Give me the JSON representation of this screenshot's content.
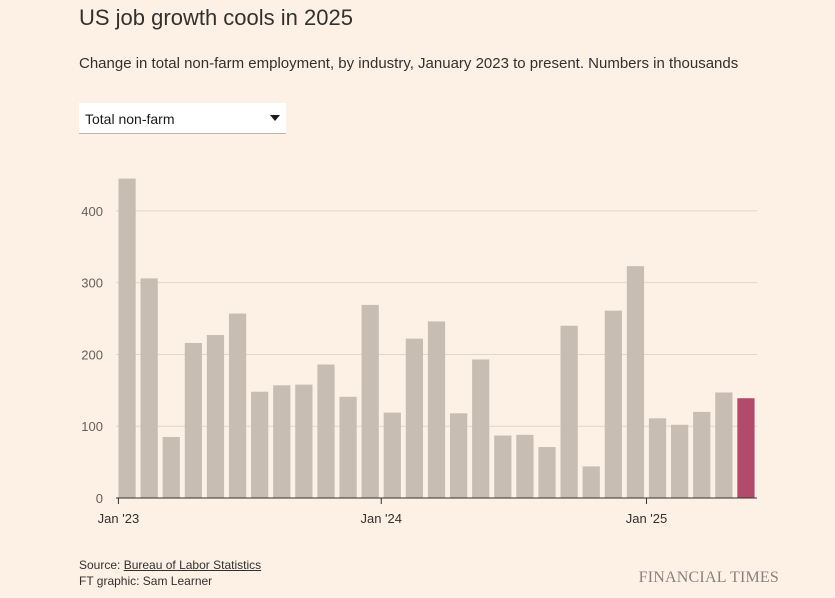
{
  "header": {
    "title": "US job growth cools in 2025",
    "subtitle": "Change in total non-farm employment, by industry, January 2023 to present. Numbers in thousands"
  },
  "dropdown": {
    "selected": "Total non-farm",
    "icon": "caret-down-icon"
  },
  "footer": {
    "source_prefix": "Source: ",
    "source_link": "Bureau of Labor Statistics",
    "credit": "FT graphic: Sam Learner",
    "brand": "FINANCIAL TIMES"
  },
  "colors": {
    "background": "#fdf1e6",
    "bar": "#c8bdb3",
    "highlight": "#b24a6b",
    "grid": "#e0d6cc",
    "axis": "#33302e"
  },
  "chart_data": {
    "type": "bar",
    "categories": [
      "2023-01",
      "2023-02",
      "2023-03",
      "2023-04",
      "2023-05",
      "2023-06",
      "2023-07",
      "2023-08",
      "2023-09",
      "2023-10",
      "2023-11",
      "2023-12",
      "2024-01",
      "2024-02",
      "2024-03",
      "2024-04",
      "2024-05",
      "2024-06",
      "2024-07",
      "2024-08",
      "2024-09",
      "2024-10",
      "2024-11",
      "2024-12",
      "2025-01",
      "2025-02",
      "2025-03",
      "2025-04",
      "2025-05"
    ],
    "values": [
      445,
      306,
      85,
      216,
      227,
      257,
      148,
      157,
      158,
      186,
      141,
      269,
      119,
      222,
      246,
      118,
      193,
      87,
      88,
      71,
      240,
      44,
      261,
      323,
      111,
      102,
      120,
      147,
      139
    ],
    "highlight_index": 28,
    "yticks": [
      0,
      100,
      200,
      300,
      400
    ],
    "ylim": [
      0,
      450
    ],
    "xtick_labels": [
      {
        "index": 0,
        "label": "Jan '23"
      },
      {
        "index": 12,
        "label": "Jan '24"
      },
      {
        "index": 24,
        "label": "Jan '25"
      }
    ],
    "grid": true,
    "title": "US job growth cools in 2025",
    "xlabel": "",
    "ylabel": ""
  }
}
